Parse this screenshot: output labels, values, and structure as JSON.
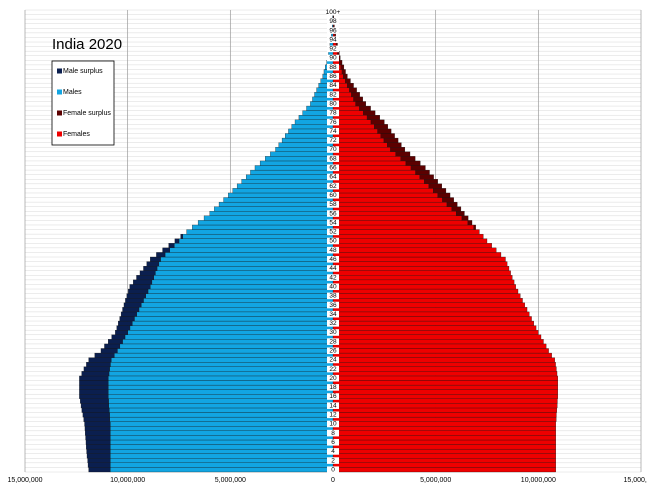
{
  "chart_data": {
    "type": "pyramid",
    "title": "India 2020",
    "categories": [
      "0",
      null,
      "2",
      null,
      "4",
      null,
      "6",
      null,
      "8",
      null,
      "10",
      null,
      "12",
      null,
      "14",
      null,
      "16",
      null,
      "18",
      null,
      "20",
      null,
      "22",
      null,
      "24",
      null,
      "26",
      null,
      "28",
      null,
      "30",
      null,
      "32",
      null,
      "34",
      null,
      "36",
      null,
      "38",
      null,
      "40",
      null,
      "42",
      null,
      "44",
      null,
      "46",
      null,
      "48",
      null,
      "50",
      null,
      "52",
      null,
      "54",
      null,
      "56",
      null,
      "58",
      null,
      "60",
      null,
      "62",
      null,
      "64",
      null,
      "66",
      null,
      "68",
      null,
      "70",
      null,
      "72",
      null,
      "74",
      null,
      "76",
      null,
      "78",
      null,
      "80",
      null,
      "82",
      null,
      "84",
      null,
      "86",
      null,
      "88",
      null,
      "90",
      null,
      "92",
      null,
      "94",
      null,
      "96",
      null,
      "98",
      null,
      "100+"
    ],
    "xlim": [
      -15000000,
      15000000
    ],
    "xticks": [
      {
        "value": -15000000,
        "label": "15,000,000"
      },
      {
        "value": -10000000,
        "label": "10,000,000"
      },
      {
        "value": -5000000,
        "label": "5,000,000"
      },
      0,
      {
        "value": 5000000,
        "label": "5,000,000"
      },
      {
        "value": 10000000,
        "label": "10,000,000"
      },
      {
        "value": 15000000,
        "label": "15,000,000"
      }
    ],
    "grid": true,
    "legend": "upper-left",
    "series": [
      {
        "name": "Male surplus",
        "color": "#0b1f4f",
        "values": [
          -1050000,
          -1080000,
          -1100000,
          -1130000,
          -1150000,
          -1170000,
          -1180000,
          -1200000,
          -1220000,
          -1230000,
          -1250000,
          -1270000,
          -1300000,
          -1330000,
          -1350000,
          -1380000,
          -1400000,
          -1400000,
          -1400000,
          -1400000,
          -1400000,
          -1330000,
          -1250000,
          -1170000,
          -1100000,
          -950000,
          -800000,
          -750000,
          -700000,
          -650000,
          -600000,
          -640000,
          -680000,
          -720000,
          -760000,
          -800000,
          -840000,
          -880000,
          -920000,
          -960000,
          -1000000,
          -910000,
          -840000,
          -750000,
          -660000,
          -590000,
          -500000,
          -420000,
          -350000,
          -270000,
          -200000,
          -100000,
          0,
          0,
          0,
          0,
          0,
          0,
          0,
          0,
          0,
          0,
          0,
          0,
          0,
          0,
          0,
          0,
          0,
          0,
          0,
          0,
          0,
          0,
          0,
          0,
          0,
          0,
          0,
          0,
          0,
          0,
          0,
          0,
          0,
          0,
          0,
          0,
          0,
          0,
          0,
          0,
          0,
          0,
          0,
          0,
          0,
          0,
          0,
          0,
          0
        ]
      },
      {
        "name": "Males",
        "color": "#12a5e2",
        "values": [
          -10850000,
          -10850000,
          -10850000,
          -10850000,
          -10850000,
          -10850000,
          -10850000,
          -10850000,
          -10850000,
          -10850000,
          -10850000,
          -10870000,
          -10880000,
          -10900000,
          -10920000,
          -10930000,
          -10950000,
          -10950000,
          -10950000,
          -10950000,
          -10950000,
          -10910000,
          -10880000,
          -10840000,
          -10800000,
          -10650000,
          -10500000,
          -10380000,
          -10250000,
          -10130000,
          -10000000,
          -9890000,
          -9780000,
          -9670000,
          -9560000,
          -9450000,
          -9340000,
          -9230000,
          -9120000,
          -9010000,
          -8900000,
          -8820000,
          -8730000,
          -8650000,
          -8570000,
          -8480000,
          -8400000,
          -8180000,
          -7950000,
          -7730000,
          -7500000,
          -7320000,
          -7130000,
          -6850000,
          -6570000,
          -6280000,
          -6000000,
          -5780000,
          -5550000,
          -5330000,
          -5100000,
          -4880000,
          -4670000,
          -4450000,
          -4230000,
          -4020000,
          -3800000,
          -3550000,
          -3300000,
          -3050000,
          -2800000,
          -2640000,
          -2480000,
          -2330000,
          -2170000,
          -2010000,
          -1850000,
          -1660000,
          -1480000,
          -1290000,
          -1100000,
          -1000000,
          -900000,
          -800000,
          -700000,
          -600000,
          -500000,
          -440000,
          -380000,
          -310000,
          -250000,
          -220000,
          -180000,
          -150000,
          -120000,
          -80000,
          -50000,
          -40000,
          -30000,
          -20000,
          -10000
        ]
      },
      {
        "name": "Female surplus",
        "color": "#5c0000",
        "values": [
          0,
          0,
          0,
          0,
          0,
          0,
          0,
          0,
          0,
          0,
          0,
          0,
          0,
          0,
          0,
          0,
          0,
          0,
          0,
          0,
          0,
          0,
          0,
          0,
          0,
          0,
          0,
          0,
          0,
          0,
          0,
          0,
          0,
          0,
          0,
          0,
          0,
          0,
          0,
          0,
          0,
          0,
          0,
          0,
          0,
          0,
          0,
          0,
          0,
          0,
          0,
          0,
          0,
          100000,
          200000,
          300000,
          400000,
          450000,
          500000,
          550000,
          600000,
          620000,
          630000,
          650000,
          670000,
          680000,
          700000,
          700000,
          700000,
          700000,
          700000,
          690000,
          690000,
          670000,
          660000,
          660000,
          650000,
          620000,
          570000,
          540000,
          500000,
          450000,
          400000,
          350000,
          300000,
          250000,
          200000,
          170000,
          150000,
          130000,
          100000,
          90000,
          80000,
          70000,
          50000,
          50000,
          30000,
          30000,
          20000,
          20000,
          10000
        ]
      },
      {
        "name": "Females",
        "color": "#ee0000",
        "values": [
          10850000,
          10850000,
          10850000,
          10850000,
          10850000,
          10850000,
          10850000,
          10850000,
          10850000,
          10850000,
          10850000,
          10870000,
          10880000,
          10900000,
          10920000,
          10930000,
          10950000,
          10950000,
          10950000,
          10950000,
          10950000,
          10910000,
          10880000,
          10840000,
          10800000,
          10650000,
          10500000,
          10380000,
          10250000,
          10130000,
          10000000,
          9890000,
          9780000,
          9670000,
          9560000,
          9450000,
          9340000,
          9230000,
          9120000,
          9010000,
          8900000,
          8820000,
          8730000,
          8650000,
          8570000,
          8480000,
          8400000,
          8180000,
          7950000,
          7730000,
          7500000,
          7320000,
          7130000,
          6850000,
          6570000,
          6280000,
          6000000,
          5780000,
          5550000,
          5330000,
          5100000,
          4880000,
          4670000,
          4450000,
          4230000,
          4020000,
          3800000,
          3550000,
          3300000,
          3050000,
          2800000,
          2640000,
          2480000,
          2330000,
          2170000,
          2010000,
          1850000,
          1660000,
          1480000,
          1290000,
          1100000,
          1000000,
          900000,
          800000,
          700000,
          600000,
          500000,
          440000,
          380000,
          310000,
          250000,
          220000,
          180000,
          150000,
          120000,
          80000,
          50000,
          40000,
          30000,
          20000,
          10000
        ]
      }
    ]
  }
}
